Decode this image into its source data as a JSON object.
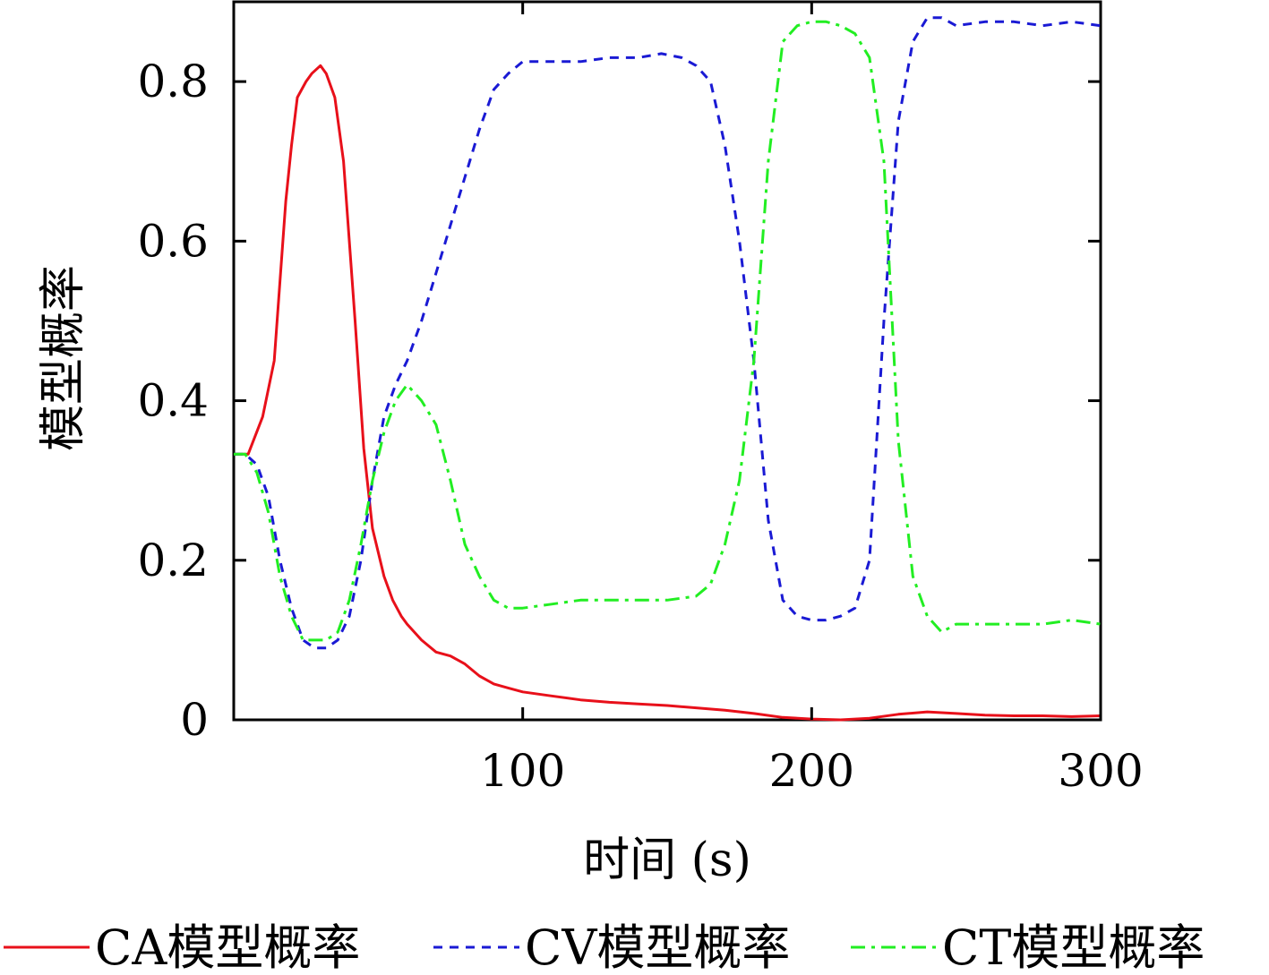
{
  "chart_data": {
    "type": "line",
    "title": "",
    "xlabel": "时间 (s)",
    "ylabel": "模型概率",
    "xlim": [
      0,
      300
    ],
    "ylim": [
      0,
      0.9
    ],
    "x_ticks": [
      100,
      200,
      300
    ],
    "x_tick_labels": [
      "100",
      "200",
      "300"
    ],
    "y_ticks": [
      0,
      0.2,
      0.4,
      0.6,
      0.8
    ],
    "y_tick_labels": [
      "0",
      "0.2",
      "0.4",
      "0.6",
      "0.8"
    ],
    "grid": false,
    "legend_position": "bottom",
    "series": [
      {
        "name": "CA模型概率",
        "color": "#e8101a",
        "dash": "solid",
        "x": [
          0,
          5,
          10,
          14,
          18,
          20,
          22,
          25,
          27,
          30,
          32,
          35,
          38,
          42,
          45,
          48,
          52,
          55,
          58,
          60,
          65,
          70,
          75,
          80,
          85,
          90,
          95,
          100,
          110,
          120,
          130,
          140,
          150,
          160,
          170,
          180,
          190,
          200,
          210,
          220,
          230,
          240,
          250,
          260,
          270,
          280,
          290,
          300
        ],
        "y": [
          0.333,
          0.333,
          0.38,
          0.45,
          0.65,
          0.72,
          0.78,
          0.8,
          0.81,
          0.82,
          0.81,
          0.78,
          0.7,
          0.5,
          0.34,
          0.24,
          0.18,
          0.15,
          0.13,
          0.12,
          0.1,
          0.085,
          0.08,
          0.07,
          0.055,
          0.045,
          0.04,
          0.035,
          0.03,
          0.025,
          0.022,
          0.02,
          0.018,
          0.015,
          0.012,
          0.008,
          0.003,
          0.001,
          0.0,
          0.002,
          0.007,
          0.01,
          0.008,
          0.006,
          0.005,
          0.005,
          0.004,
          0.005
        ]
      },
      {
        "name": "CV模型概率",
        "color": "#1a1ad4",
        "dash": "dashed",
        "x": [
          0,
          4,
          8,
          12,
          16,
          20,
          24,
          28,
          32,
          36,
          40,
          44,
          48,
          52,
          56,
          60,
          65,
          70,
          75,
          80,
          85,
          90,
          95,
          100,
          110,
          120,
          130,
          140,
          148,
          155,
          160,
          165,
          170,
          175,
          180,
          185,
          190,
          195,
          200,
          205,
          210,
          215,
          220,
          225,
          230,
          235,
          240,
          245,
          250,
          260,
          270,
          280,
          290,
          300
        ],
        "y": [
          0.333,
          0.333,
          0.32,
          0.28,
          0.2,
          0.14,
          0.1,
          0.09,
          0.09,
          0.1,
          0.13,
          0.2,
          0.3,
          0.38,
          0.42,
          0.45,
          0.5,
          0.56,
          0.62,
          0.68,
          0.74,
          0.79,
          0.81,
          0.825,
          0.825,
          0.825,
          0.83,
          0.83,
          0.835,
          0.83,
          0.82,
          0.8,
          0.72,
          0.6,
          0.45,
          0.25,
          0.15,
          0.13,
          0.125,
          0.125,
          0.13,
          0.14,
          0.2,
          0.5,
          0.75,
          0.85,
          0.88,
          0.88,
          0.87,
          0.875,
          0.875,
          0.87,
          0.875,
          0.87
        ]
      },
      {
        "name": "CT模型概率",
        "color": "#22ee22",
        "dash": "dashdot",
        "x": [
          0,
          4,
          8,
          12,
          16,
          20,
          24,
          28,
          32,
          36,
          40,
          44,
          48,
          52,
          56,
          60,
          65,
          70,
          75,
          80,
          85,
          90,
          95,
          100,
          110,
          120,
          130,
          140,
          150,
          160,
          165,
          170,
          175,
          180,
          185,
          190,
          195,
          200,
          205,
          210,
          215,
          220,
          225,
          230,
          235,
          240,
          245,
          250,
          260,
          270,
          280,
          290,
          300
        ],
        "y": [
          0.333,
          0.333,
          0.31,
          0.26,
          0.18,
          0.13,
          0.1,
          0.1,
          0.1,
          0.11,
          0.15,
          0.22,
          0.3,
          0.36,
          0.4,
          0.42,
          0.4,
          0.37,
          0.3,
          0.22,
          0.18,
          0.15,
          0.14,
          0.14,
          0.145,
          0.15,
          0.15,
          0.15,
          0.15,
          0.155,
          0.17,
          0.22,
          0.3,
          0.45,
          0.7,
          0.85,
          0.87,
          0.875,
          0.875,
          0.87,
          0.86,
          0.83,
          0.7,
          0.35,
          0.18,
          0.13,
          0.11,
          0.12,
          0.12,
          0.12,
          0.12,
          0.125,
          0.12
        ]
      }
    ]
  }
}
